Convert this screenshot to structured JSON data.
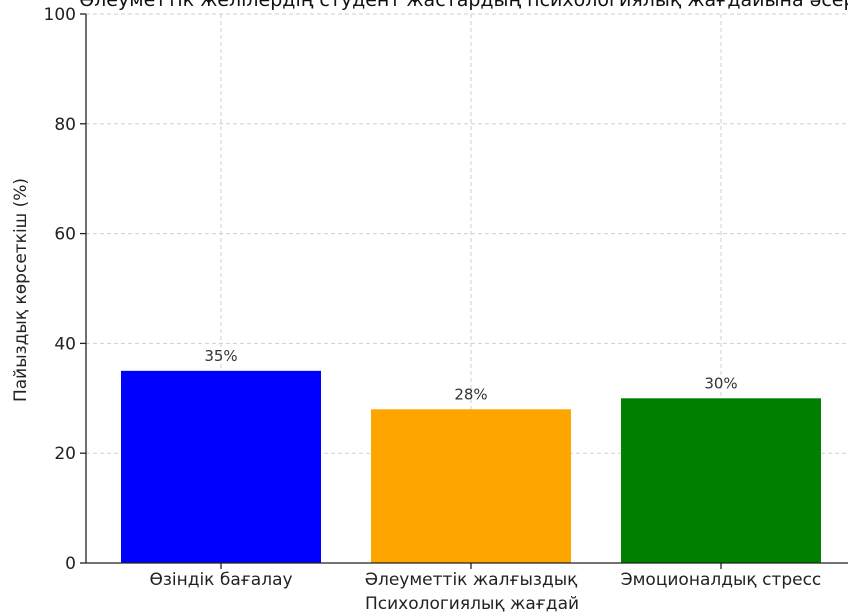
{
  "chart_data": {
    "type": "bar",
    "title": "Әлеуметтік желілердің студент жастардың психологиялық жағдайына әсері",
    "xlabel": "Психологиялық жағдай",
    "ylabel": "Пайыздық көрсеткіш (%)",
    "categories": [
      "Өзіндік бағалау",
      "Әлеуметтік жалғыздық",
      "Эмоционалдық стресс"
    ],
    "values": [
      35,
      28,
      30
    ],
    "value_labels": [
      "35%",
      "28%",
      "30%"
    ],
    "colors": [
      "#0000ff",
      "#ffa500",
      "#008000"
    ],
    "ylim": [
      0,
      100
    ],
    "yticks": [
      0,
      20,
      40,
      60,
      80,
      100
    ],
    "grid": true,
    "legend": "none"
  }
}
